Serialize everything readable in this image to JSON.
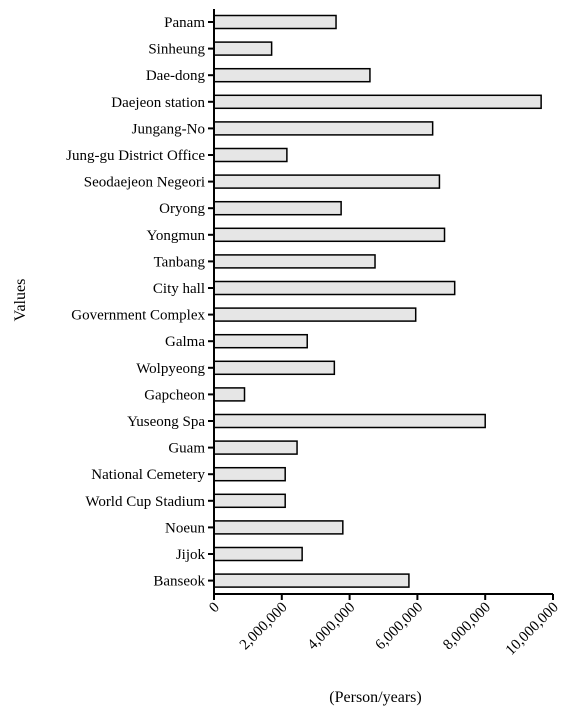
{
  "chart_data": {
    "type": "bar",
    "orientation": "horizontal",
    "categories": [
      "Panam",
      "Sinheung",
      "Dae-dong",
      "Daejeon station",
      "Jungang-No",
      "Jung-gu District Office",
      "Seodaejeon Negeori",
      "Oryong",
      "Yongmun",
      "Tanbang",
      "City hall",
      "Government Complex",
      "Galma",
      "Wolpyeong",
      "Gapcheon",
      "Yuseong Spa",
      "Guam",
      "National Cemetery",
      "World Cup Stadium",
      "Noeun",
      "Jijok",
      "Banseok"
    ],
    "values": [
      3600000,
      1700000,
      4600000,
      9650000,
      6450000,
      2150000,
      6650000,
      3750000,
      6800000,
      4750000,
      7100000,
      5950000,
      2750000,
      3550000,
      900000,
      8000000,
      2450000,
      2100000,
      2100000,
      3800000,
      2600000,
      5750000
    ],
    "xlim": [
      0,
      10000000
    ],
    "xticks": [
      0,
      2000000,
      4000000,
      6000000,
      8000000,
      10000000
    ],
    "xtick_labels": [
      "0",
      "2,000,000",
      "4,000,000",
      "6,000,000",
      "8,000,000",
      "10,000,000"
    ],
    "xlabel": "(Person/years)",
    "ylabel": "Values",
    "title": "",
    "grid": false,
    "legend": "none",
    "bar_color": "#e6e6e6",
    "edge_color": "#000000"
  }
}
